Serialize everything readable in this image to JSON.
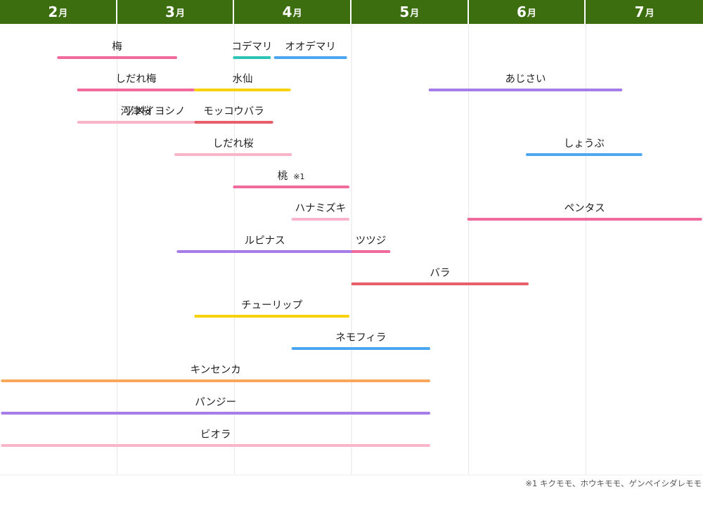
{
  "chart_data": {
    "type": "bar",
    "months": [
      {
        "num": "2",
        "unit": "月"
      },
      {
        "num": "3",
        "unit": "月"
      },
      {
        "num": "4",
        "unit": "月"
      },
      {
        "num": "5",
        "unit": "月"
      },
      {
        "num": "6",
        "unit": "月"
      },
      {
        "num": "7",
        "unit": "月"
      }
    ],
    "x_range": [
      2,
      8
    ],
    "grid": true,
    "series": [
      {
        "name": "梅",
        "start": 2.5,
        "end": 3.5,
        "color": "#f06a9b",
        "row": 0
      },
      {
        "name": "コデマリ",
        "start": 4.0,
        "end": 4.3,
        "color": "#2ec4b6",
        "row": 0
      },
      {
        "name": "オオデマリ",
        "start": 4.35,
        "end": 4.95,
        "color": "#4da6f0",
        "row": 0
      },
      {
        "name": "しだれ梅",
        "start": 2.67,
        "end": 3.65,
        "color": "#f06a9b",
        "row": 1
      },
      {
        "name": "水仙",
        "start": 3.67,
        "end": 4.47,
        "color": "#f7d10a",
        "row": 1
      },
      {
        "name": "あじさい",
        "start": 5.67,
        "end": 7.3,
        "color": "#a67ce8",
        "row": 1
      },
      {
        "name": "河津桜",
        "start": 2.67,
        "end": 3.65,
        "color": "#f8b4c9",
        "row": 2
      },
      {
        "name": "ソメイヨシノ",
        "start": 3.17,
        "end": 3.47,
        "color": "#f8b4c9",
        "row": 2
      },
      {
        "name": "モッコウバラ",
        "start": 3.67,
        "end": 4.32,
        "color": "#e85d6a",
        "row": 2
      },
      {
        "name": "しだれ桜",
        "start": 3.5,
        "end": 4.48,
        "color": "#f8b4c9",
        "row": 3
      },
      {
        "name": "しょうぶ",
        "start": 6.5,
        "end": 7.47,
        "color": "#4da6f0",
        "row": 3
      },
      {
        "name": "桃",
        "note": "※1",
        "start": 4.0,
        "end": 4.97,
        "color": "#f06a9b",
        "row": 4
      },
      {
        "name": "ハナミズキ",
        "start": 4.5,
        "end": 4.97,
        "color": "#f8b4c9",
        "row": 5
      },
      {
        "name": "ペンタス",
        "start": 6.0,
        "end": 7.98,
        "color": "#f06a9b",
        "row": 5
      },
      {
        "name": "ルピナス",
        "start": 3.52,
        "end": 5.0,
        "color": "#a67ce8",
        "row": 6
      },
      {
        "name": "ツツジ",
        "start": 5.01,
        "end": 5.32,
        "color": "#f06a9b",
        "row": 6
      },
      {
        "name": "バラ",
        "start": 5.01,
        "end": 6.5,
        "color": "#e85d6a",
        "row": 7
      },
      {
        "name": "チューリップ",
        "start": 3.67,
        "end": 4.97,
        "color": "#f7d10a",
        "row": 8
      },
      {
        "name": "ネモフィラ",
        "start": 4.5,
        "end": 5.66,
        "color": "#4da6f0",
        "row": 9
      },
      {
        "name": "キンセンカ",
        "start": 2.02,
        "end": 5.66,
        "color": "#f7a85c",
        "row": 10
      },
      {
        "name": "パンジー",
        "start": 2.02,
        "end": 5.66,
        "color": "#a67ce8",
        "row": 11
      },
      {
        "name": "ビオラ",
        "start": 2.02,
        "end": 5.66,
        "color": "#f8b4c9",
        "row": 12
      }
    ]
  },
  "footnote": "※1 キクモモ、ホウキモモ、ゲンペイシダレモモ"
}
